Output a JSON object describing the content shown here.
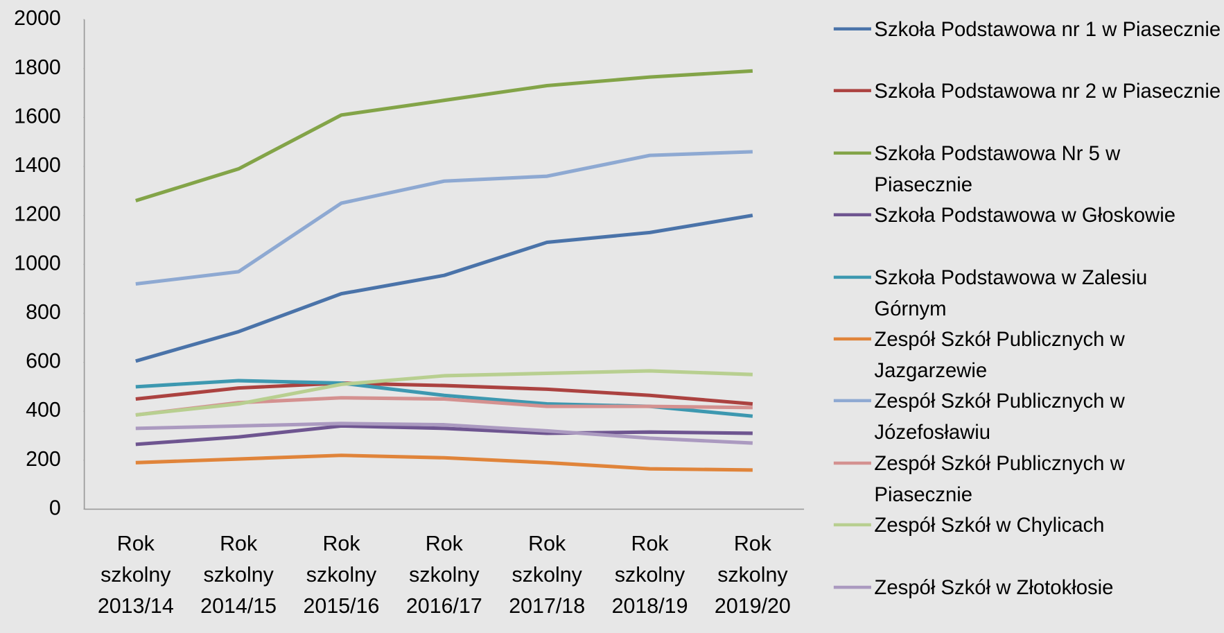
{
  "chart_data": {
    "type": "line",
    "categories": [
      "Rok szkolny 2013/14",
      "Rok szkolny 2014/15",
      "Rok szkolny 2015/16",
      "Rok szkolny 2016/17",
      "Rok szkolny 2017/18",
      "Rok szkolny 2018/19",
      "Rok szkolny 2019/20"
    ],
    "series": [
      {
        "name": "Szkoła Podstawowa nr 1 w Piasecznie",
        "color": "#4a73a9",
        "values": [
          605,
          725,
          880,
          955,
          1090,
          1130,
          1200
        ]
      },
      {
        "name": "Szkoła Podstawowa nr 2 w Piasecznie",
        "color": "#ab4240",
        "values": [
          450,
          495,
          515,
          505,
          490,
          465,
          430
        ]
      },
      {
        "name": "Szkoła Podstawowa Nr 5 w Piasecznie",
        "color": "#83a448",
        "values": [
          1260,
          1390,
          1610,
          1670,
          1730,
          1765,
          1790
        ]
      },
      {
        "name": "Szkoła Podstawowa w Głoskowie",
        "color": "#6e5590",
        "values": [
          265,
          295,
          340,
          330,
          310,
          315,
          310
        ]
      },
      {
        "name": "Szkoła Podstawowa w Zalesiu Górnym",
        "color": "#3d98b0",
        "values": [
          500,
          525,
          515,
          465,
          430,
          420,
          380
        ]
      },
      {
        "name": "Zespół Szkół Publicznych w Jazgarzewie",
        "color": "#e0843a",
        "values": [
          190,
          205,
          220,
          210,
          190,
          165,
          160
        ]
      },
      {
        "name": "Zespół Szkół Publicznych w Józefosławiu",
        "color": "#8ea9d2",
        "values": [
          920,
          970,
          1250,
          1340,
          1360,
          1445,
          1460
        ]
      },
      {
        "name": "Zespół Szkół Publicznych w Piasecznie",
        "color": "#d49190",
        "values": [
          385,
          435,
          455,
          450,
          420,
          420,
          415
        ]
      },
      {
        "name": "Zespół Szkół w Chylicach",
        "color": "#b8cf90",
        "values": [
          385,
          430,
          510,
          545,
          555,
          565,
          550
        ]
      },
      {
        "name": "Zespół Szkół w Złotokłosie",
        "color": "#ab9ac0",
        "values": [
          330,
          340,
          350,
          345,
          320,
          290,
          270
        ]
      }
    ],
    "ylim": [
      0,
      2000
    ],
    "yticks": [
      0,
      200,
      400,
      600,
      800,
      1000,
      1200,
      1400,
      1600,
      1800,
      2000
    ],
    "legend": "right"
  }
}
